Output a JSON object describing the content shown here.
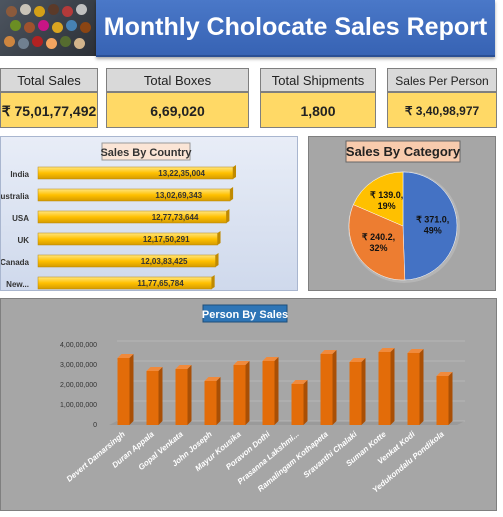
{
  "header": {
    "title": "Monthly Cholocate Sales Report"
  },
  "kpis": [
    {
      "label": "Total Sales",
      "value": "₹ 75,01,77,492"
    },
    {
      "label": "Total Boxes",
      "value": "6,69,020"
    },
    {
      "label": "Total Shipments",
      "value": "1,800"
    },
    {
      "label": "Sales Per Person",
      "value": "₹ 3,40,98,977"
    }
  ],
  "colors": {
    "header_blue": "#3f6fc0",
    "kpi_yellow": "#ffd966",
    "bar_yellow": "#ffc000",
    "bar_orange": "#e36c09",
    "pie_blue": "#4472c4",
    "pie_orange": "#ed7d31",
    "pie_yellow": "#ffc000"
  },
  "chart_data": [
    {
      "type": "bar",
      "orientation": "horizontal",
      "title": "Sales By Country",
      "categories": [
        "India",
        "Australia",
        "USA",
        "UK",
        "Canada",
        "New..."
      ],
      "values": [
        132235004,
        130269343,
        127773644,
        121750291,
        120383425,
        117765784
      ],
      "data_labels": [
        "13,22,35,004",
        "13,02,69,343",
        "12,77,73,644",
        "12,17,50,291",
        "12,03,83,425",
        "11,77,65,784"
      ]
    },
    {
      "type": "pie",
      "title": "Sales By Category",
      "slices": [
        {
          "value": 371.0,
          "label": "₹ 371.0, 49%"
        },
        {
          "value": 240.2,
          "label": "₹ 240.2, 32%"
        },
        {
          "value": 139.0,
          "label": "₹ 139.0, 19%"
        }
      ]
    },
    {
      "type": "bar",
      "title": "Person By Sales",
      "categories": [
        "Devert Damarsingh",
        "Duran Appala",
        "Gopal Venkata",
        "John Joseph",
        "Mayur Kousika",
        "Poravon Dothi",
        "Prasanna Lakshmi...",
        "Ramalingam Kothapeta",
        "Sravanthi Chalaki",
        "Suman Kotte",
        "Venkat Kodi",
        "Yedukondalu Pondikola"
      ],
      "values": [
        33500000,
        27000000,
        28000000,
        22000000,
        30000000,
        32000000,
        20500000,
        35500000,
        31500000,
        36500000,
        36000000,
        24500000
      ],
      "y_tick_labels": [
        "0",
        "1,00,00,000",
        "2,00,00,000",
        "3,00,00,000",
        "4,00,00,000"
      ],
      "ylim": [
        0,
        40000000
      ]
    }
  ]
}
